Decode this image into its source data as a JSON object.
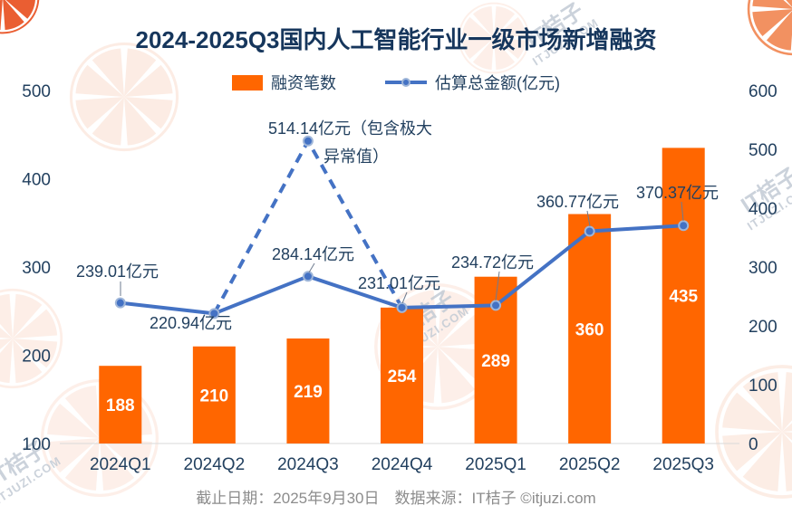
{
  "title": "2024-2025Q3国内人工智能行业一级市场新增融资",
  "legend": {
    "bar_label": "融资笔数",
    "line_label": "估算总金额(亿元)"
  },
  "footer": "截止日期：2025年9月30日　数据来源：IT桔子 ©itjuzi.com",
  "watermark": {
    "brand": "IT桔子",
    "domain": "ITJUZI.COM"
  },
  "colors": {
    "bar": "#FF6600",
    "line": "#4472C4",
    "title_text": "#16365C",
    "axis_text": "#22405F",
    "bar_value_text": "#FFFFFF",
    "footer_text": "#8C8C8C",
    "watermark_orange": "#F08650",
    "watermark_text": "#C3CBD5"
  },
  "chart_data": {
    "type": "bar+line",
    "categories": [
      "2024Q1",
      "2024Q2",
      "2024Q3",
      "2024Q4",
      "2025Q1",
      "2025Q2",
      "2025Q3"
    ],
    "series": [
      {
        "name": "融资笔数",
        "type": "bar",
        "axis": "left",
        "color": "#FF6600",
        "values": [
          188,
          210,
          219,
          254,
          289,
          360,
          435
        ]
      },
      {
        "name": "估算总金额(亿元)",
        "type": "line",
        "axis": "right",
        "color": "#4472C4",
        "values": [
          239.01,
          220.94,
          284.14,
          231.01,
          234.72,
          360.77,
          370.37
        ],
        "point_labels": [
          "239.01亿元",
          "220.94亿元",
          "284.14亿元",
          "231.01亿元",
          "234.72亿元",
          "360.77亿元",
          "370.37亿元"
        ]
      }
    ],
    "outlier": {
      "category": "2024Q3",
      "value": 514.14,
      "label_lines": [
        "514.14亿元（包含极大",
        "异常值）"
      ],
      "style": "dashed-spike-from-2024Q2-through-peak-to-2024Q4"
    },
    "left_axis": {
      "min": 100,
      "max": 500,
      "step": 100
    },
    "right_axis": {
      "min": 0,
      "max": 600,
      "step": 100
    },
    "grid": false,
    "legend_position": "top"
  }
}
